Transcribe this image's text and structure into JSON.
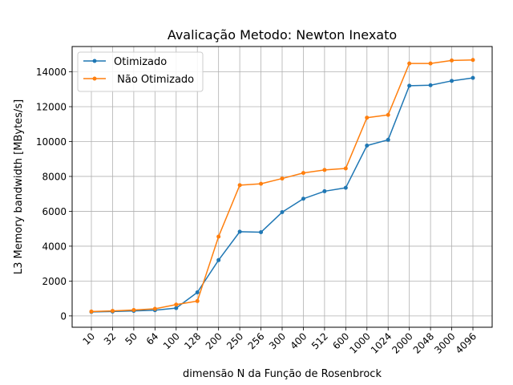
{
  "chart_data": {
    "type": "line",
    "title": "Avalicação Metodo:  Newton Inexato",
    "xlabel": "dimensão N da Função de Rosenbrock",
    "ylabel": "L3 Memory bandwidth [MBytes/s]",
    "categories": [
      "10",
      "32",
      "50",
      "64",
      "100",
      "128",
      "200",
      "250",
      "256",
      "300",
      "400",
      "512",
      "600",
      "1000",
      "1024",
      "2000",
      "2048",
      "3000",
      "4096"
    ],
    "series": [
      {
        "name": "Otimizado",
        "color": "#1f77b4",
        "values": [
          230,
          250,
          290,
          330,
          450,
          1350,
          3200,
          4830,
          4800,
          5950,
          6720,
          7150,
          7350,
          9770,
          10100,
          13200,
          13230,
          13480,
          13650
        ]
      },
      {
        "name": " Não Otimizado",
        "color": "#ff7f0e",
        "values": [
          250,
          290,
          340,
          410,
          650,
          850,
          4550,
          7500,
          7580,
          7880,
          8200,
          8370,
          8460,
          11370,
          11530,
          14480,
          14480,
          14650,
          14680
        ]
      }
    ],
    "yticks": [
      "0",
      "2000",
      "4000",
      "6000",
      "8000",
      "10000",
      "12000",
      "14000"
    ],
    "ylim": [
      -650,
      15450
    ],
    "grid": true,
    "legend_position": "top-left"
  }
}
